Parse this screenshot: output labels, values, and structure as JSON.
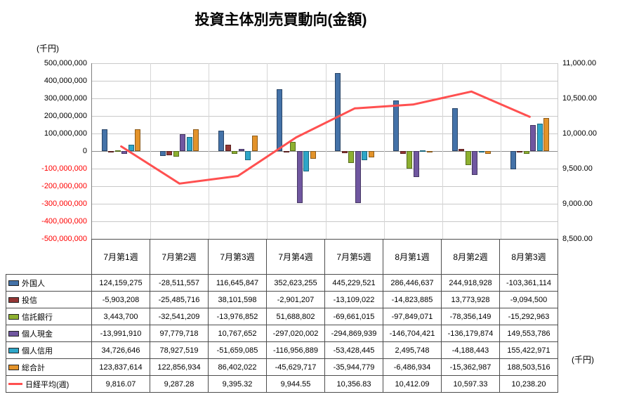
{
  "title": "投資主体別売買動向(金額)",
  "left_axis_unit": "(千円)",
  "right_axis_unit": "(千円)",
  "chart_data": {
    "type": "bar+line",
    "title": "投資主体別売買動向(金額)",
    "categories": [
      "7月第1週",
      "7月第2週",
      "7月第3週",
      "7月第4週",
      "7月第5週",
      "8月第1週",
      "8月第2週",
      "8月第3週"
    ],
    "left_axis": {
      "unit": "(千円)",
      "min": -500000000,
      "max": 500000000,
      "step": 100000000,
      "tick_labels": [
        "500,000,000",
        "400,000,000",
        "300,000,000",
        "200,000,000",
        "100,000,000",
        "0",
        "-100,000,000",
        "-200,000,000",
        "-300,000,000",
        "-400,000,000",
        "-500,000,000"
      ]
    },
    "right_axis": {
      "unit": "(千円)",
      "min": 8500,
      "max": 11000,
      "step": 500,
      "tick_labels": [
        "11,000.00",
        "10,500.00",
        "10,000.00",
        "9,500.00",
        "9,000.00",
        "8,500.00"
      ]
    },
    "bar_series": [
      {
        "name": "外国人",
        "color": "#4472A8",
        "values": [
          124159275,
          -28511557,
          116645847,
          352623255,
          445229521,
          286446637,
          244918928,
          -103361114
        ],
        "labels": [
          "124,159,275",
          "-28,511,557",
          "116,645,847",
          "352,623,255",
          "445,229,521",
          "286,446,637",
          "244,918,928",
          "-103,361,114"
        ]
      },
      {
        "name": "投信",
        "color": "#943634",
        "values": [
          -5903208,
          -25485716,
          38101598,
          -2901207,
          -13109022,
          -14823885,
          13773928,
          -9094500
        ],
        "labels": [
          "-5,903,208",
          "-25,485,716",
          "38,101,598",
          "-2,901,207",
          "-13,109,022",
          "-14,823,885",
          "13,773,928",
          "-9,094,500"
        ]
      },
      {
        "name": "信託銀行",
        "color": "#8DB030",
        "values": [
          3443700,
          -32541209,
          -13976852,
          51688802,
          -69661015,
          -97849071,
          -78356149,
          -15292963
        ],
        "labels": [
          "3,443,700",
          "-32,541,209",
          "-13,976,852",
          "51,688,802",
          "-69,661,015",
          "-97,849,071",
          "-78,356,149",
          "-15,292,963"
        ]
      },
      {
        "name": "個人現金",
        "color": "#7057A0",
        "values": [
          -13991910,
          97779718,
          10767652,
          -297020002,
          -294869939,
          -146704421,
          -136179874,
          149553786
        ],
        "labels": [
          "-13,991,910",
          "97,779,718",
          "10,767,652",
          "-297,020,002",
          "-294,869,939",
          "-146,704,421",
          "-136,179,874",
          "149,553,786"
        ]
      },
      {
        "name": "個人信用",
        "color": "#2EA6C8",
        "values": [
          34726646,
          78927519,
          -51659085,
          -116956889,
          -53428445,
          2495748,
          -4188443,
          155422971
        ],
        "labels": [
          "34,726,646",
          "78,927,519",
          "-51,659,085",
          "-116,956,889",
          "-53,428,445",
          "2,495,748",
          "-4,188,443",
          "155,422,971"
        ]
      },
      {
        "name": "総合計",
        "color": "#E3932A",
        "values": [
          123837614,
          122856934,
          86402022,
          -45629717,
          -35944779,
          -6486934,
          -15362987,
          188503516
        ],
        "labels": [
          "123,837,614",
          "122,856,934",
          "86,402,022",
          "-45,629,717",
          "-35,944,779",
          "-6,486,934",
          "-15,362,987",
          "188,503,516"
        ]
      }
    ],
    "line_series": {
      "name": "日経平均(週)",
      "color": "#FF5050",
      "values": [
        9816.07,
        9287.28,
        9395.32,
        9944.55,
        10356.83,
        10412.09,
        10597.33,
        10238.2
      ],
      "labels": [
        "9,816.07",
        "9,287.28",
        "9,395.32",
        "9,944.55",
        "10,356.83",
        "10,412.09",
        "10,597.33",
        "10,238.20"
      ]
    },
    "legend_position": "table-left",
    "grid": true
  }
}
